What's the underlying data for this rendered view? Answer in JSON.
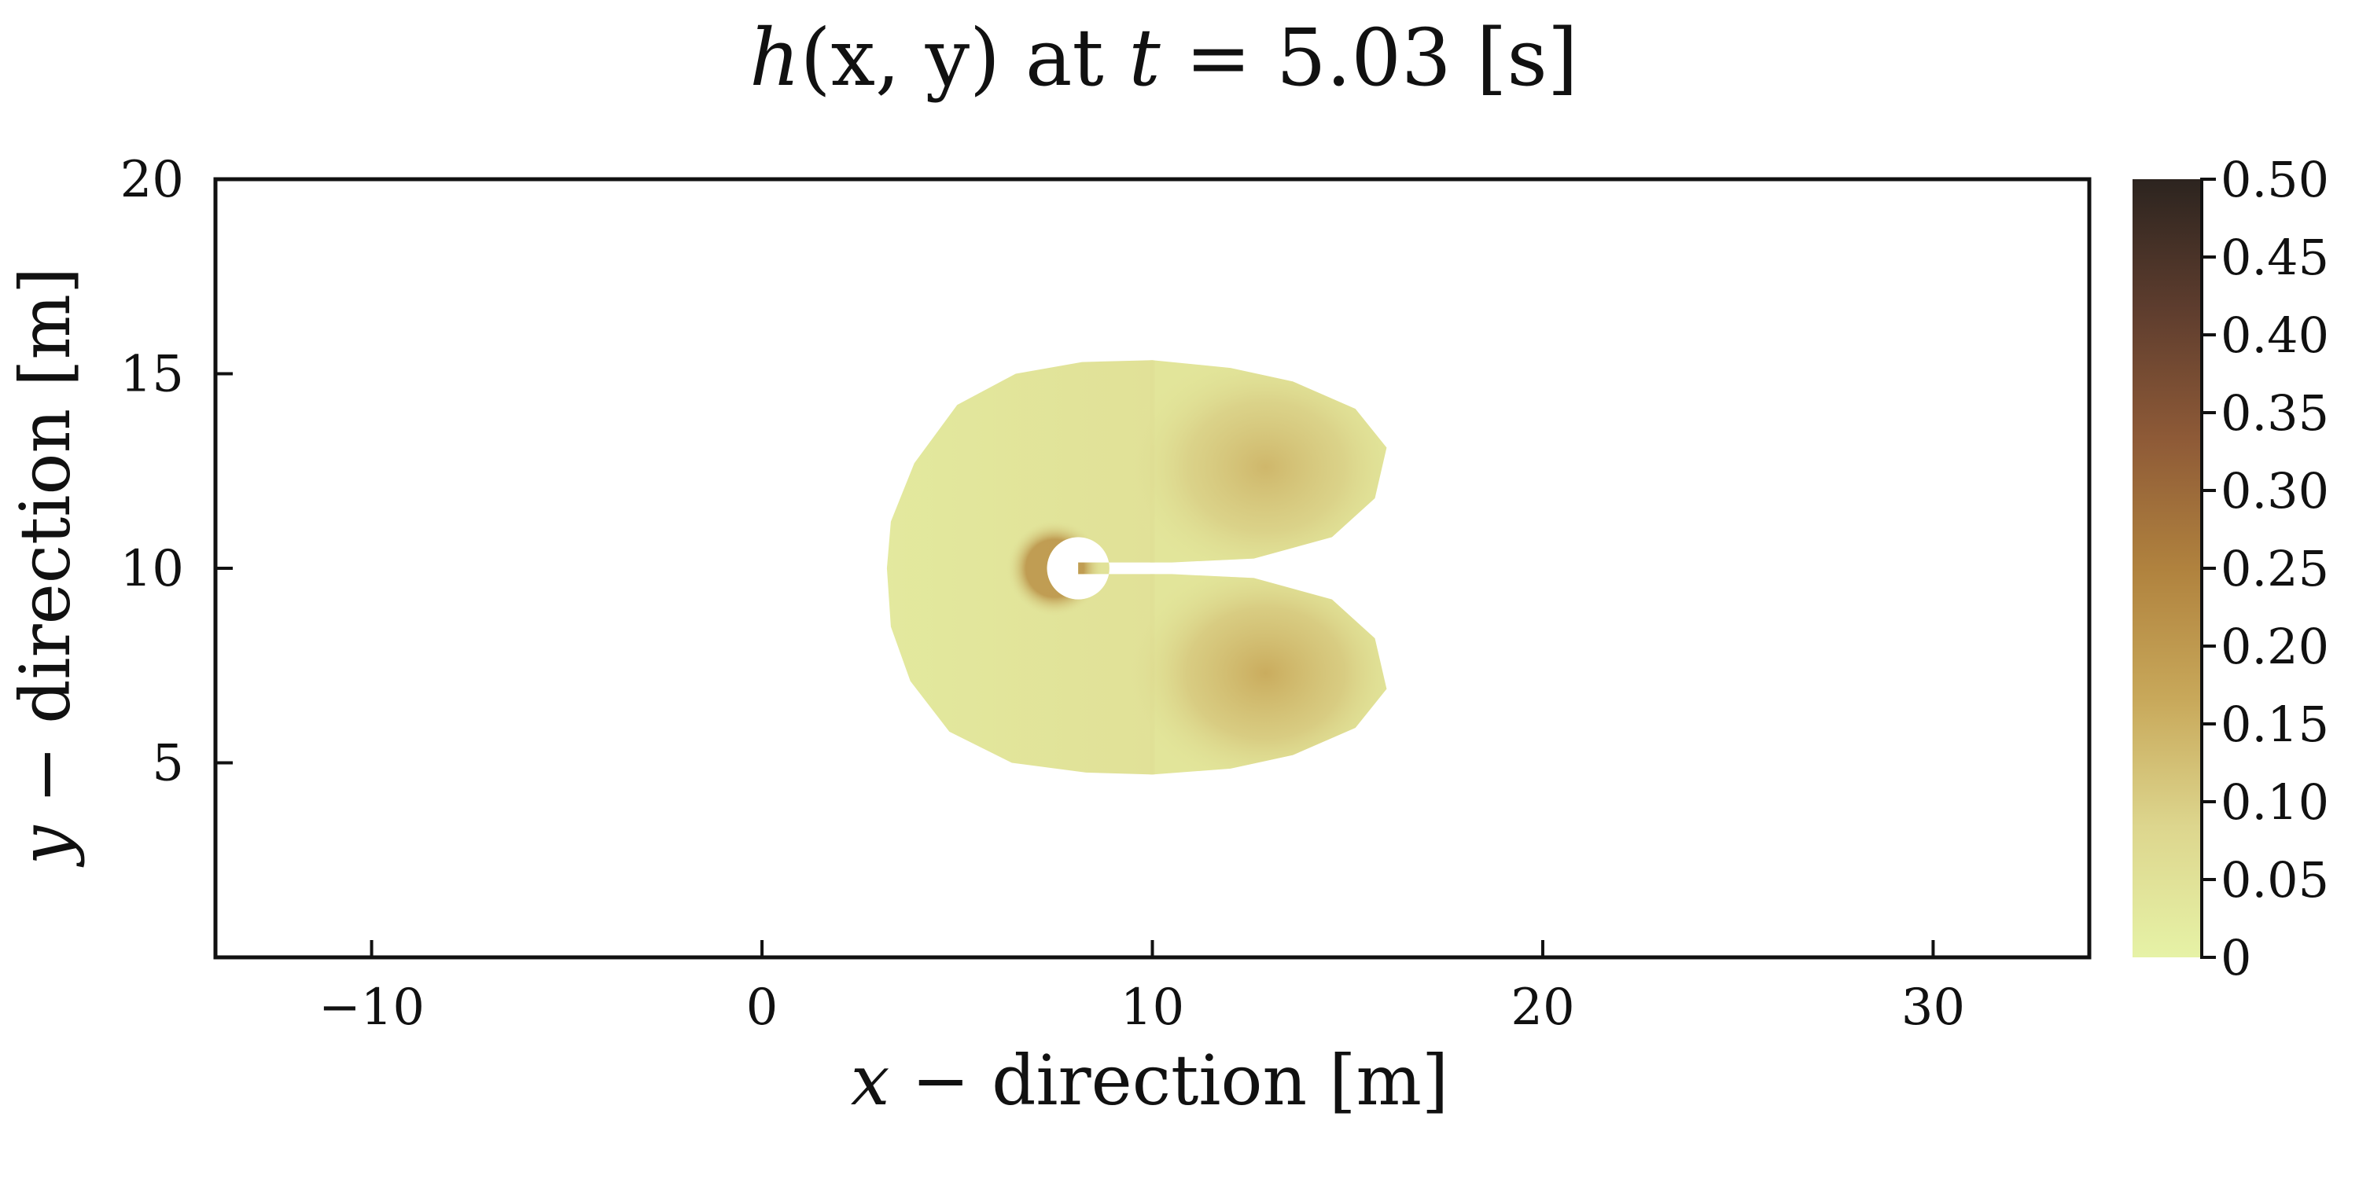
{
  "chart_data": {
    "type": "heatmap",
    "title": {
      "var": "h",
      "args": "(x, y)",
      "mid": " at ",
      "tvar": "t",
      "eq": " = 5.03 ",
      "unit": "[s]"
    },
    "xlabel": {
      "var": "x",
      "rest": " − direction [m]"
    },
    "ylabel": {
      "var": "y",
      "rest": " − direction [m]"
    },
    "xlim": [
      -14,
      34
    ],
    "ylim": [
      0,
      20
    ],
    "x_ticks": [
      -10,
      0,
      10,
      20,
      30
    ],
    "x_tick_labels": [
      "−10",
      "0",
      "10",
      "20",
      "30"
    ],
    "y_ticks": [
      5,
      10,
      15,
      20
    ],
    "y_tick_labels": [
      "5",
      "10",
      "15",
      "20"
    ],
    "colorbar": {
      "min": 0,
      "max": 0.5,
      "ticks": [
        0,
        0.05,
        0.1,
        0.15,
        0.2,
        0.25,
        0.3,
        0.35,
        0.4,
        0.45,
        0.5
      ],
      "tick_labels": [
        "0",
        "0.05",
        "0.10",
        "0.15",
        "0.20",
        "0.25",
        "0.30",
        "0.35",
        "0.40",
        "0.45",
        "0.50"
      ],
      "colors": [
        "#e6f2a6",
        "#ddd68e",
        "#c8a85a",
        "#b0823e",
        "#8e5a37",
        "#5e3d2e",
        "#2c241f"
      ]
    },
    "field": {
      "blob_outline": [
        [
          10.0,
          15.35
        ],
        [
          8.2,
          15.3
        ],
        [
          6.5,
          15.0
        ],
        [
          5.0,
          14.2
        ],
        [
          3.9,
          12.7
        ],
        [
          3.3,
          11.2
        ],
        [
          3.2,
          10.0
        ],
        [
          3.3,
          8.5
        ],
        [
          3.8,
          7.1
        ],
        [
          4.8,
          5.8
        ],
        [
          6.4,
          5.0
        ],
        [
          8.3,
          4.75
        ],
        [
          10.0,
          4.7
        ],
        [
          12.0,
          4.85
        ],
        [
          13.6,
          5.2
        ],
        [
          15.2,
          5.9
        ],
        [
          16.0,
          6.9
        ],
        [
          15.7,
          8.2
        ],
        [
          14.6,
          9.2
        ],
        [
          12.6,
          9.75
        ],
        [
          10.5,
          9.85
        ],
        [
          10.5,
          10.15
        ],
        [
          12.6,
          10.25
        ],
        [
          14.6,
          10.8
        ],
        [
          15.7,
          11.8
        ],
        [
          16.0,
          13.1
        ],
        [
          15.2,
          14.1
        ],
        [
          13.6,
          14.8
        ],
        [
          12.0,
          15.15
        ]
      ],
      "hole": {
        "cx": 8.1,
        "cy": 10.0,
        "r": 0.8
      },
      "slot": {
        "x0": 8.1,
        "x1": 10.5,
        "y0": 9.85,
        "y1": 10.15
      },
      "lobes": [
        {
          "x": 12.9,
          "y": 12.6,
          "rx": 2.3,
          "ry": 1.7,
          "value": 0.14
        },
        {
          "x": 12.9,
          "y": 7.3,
          "rx": 2.3,
          "ry": 1.7,
          "value": 0.16
        }
      ],
      "ridge": {
        "x": 7.5,
        "y": 10.0,
        "r": 0.95,
        "value": 0.2
      },
      "base_value": 0.05,
      "split_x": 10.0
    }
  }
}
